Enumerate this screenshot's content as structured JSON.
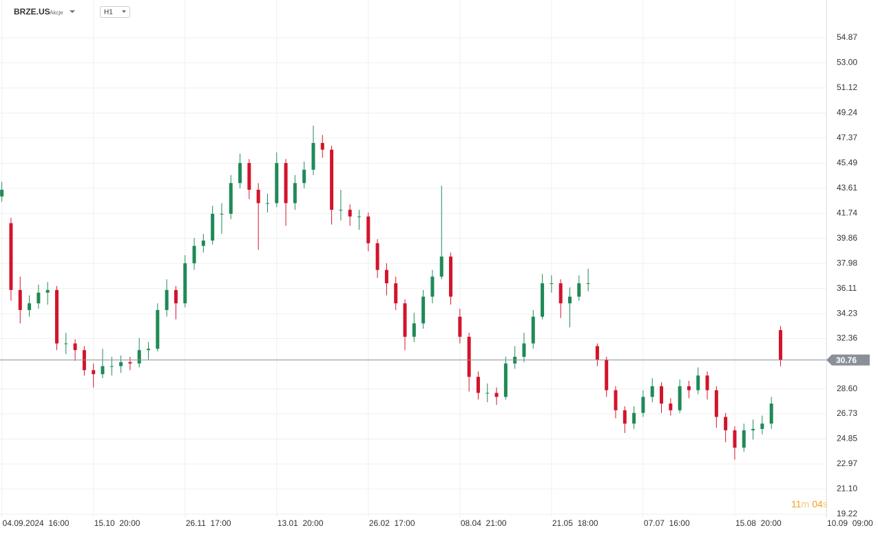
{
  "header": {
    "symbol": "BRZE.US",
    "asset_class": "Akcje",
    "interval": "H1"
  },
  "timer": {
    "minutes": "11",
    "minutes_unit": "m",
    "seconds": "04",
    "seconds_unit": "s"
  },
  "chart_data": {
    "type": "candlestick",
    "open": [
      43.0,
      41.0,
      36.0,
      34.5,
      35.0,
      35.8,
      36.0,
      32.0,
      32.0,
      31.5,
      30.0,
      29.7,
      30.3,
      30.3,
      30.6,
      30.5,
      31.5,
      31.6,
      34.5,
      36.0,
      35.0,
      38.0,
      39.3,
      39.7,
      41.7,
      41.7,
      44.0,
      45.5,
      43.5,
      42.5,
      42.5,
      45.5,
      42.5,
      44.0,
      45.0,
      47.0,
      46.5,
      42.0,
      42.0,
      41.5,
      41.5,
      39.5,
      37.5,
      36.5,
      35.0,
      32.5,
      33.5,
      35.5,
      37.0,
      38.5,
      34.0,
      32.5,
      29.5,
      28.3,
      28.3,
      28.0,
      30.5,
      31.0,
      32.0,
      34.0,
      36.5,
      36.5,
      35.0,
      35.5,
      36.5,
      31.8,
      30.8,
      28.5,
      27.0,
      26.0,
      26.8,
      28.0,
      28.8,
      27.5,
      27.0,
      28.8,
      28.5,
      29.6,
      28.5,
      26.5,
      25.5,
      24.2,
      25.5,
      25.6,
      26.0,
      33.0
    ],
    "high": [
      44.1,
      41.4,
      37.0,
      35.6,
      36.4,
      36.6,
      36.3,
      32.8,
      32.3,
      31.8,
      30.5,
      31.6,
      31.0,
      31.1,
      31.0,
      32.4,
      32.1,
      35.0,
      36.8,
      36.3,
      38.6,
      39.9,
      40.2,
      42.3,
      42.5,
      44.6,
      46.2,
      45.8,
      44.0,
      43.2,
      46.3,
      45.8,
      44.6,
      45.6,
      48.3,
      47.6,
      46.8,
      43.5,
      42.4,
      42.0,
      41.8,
      39.8,
      38.0,
      37.0,
      35.3,
      34.3,
      36.0,
      37.5,
      43.8,
      38.8,
      34.6,
      32.8,
      29.9,
      29.0,
      28.7,
      31.0,
      31.8,
      32.8,
      34.5,
      37.2,
      37.1,
      36.8,
      36.2,
      37.1,
      37.6,
      32.0,
      31.0,
      28.8,
      27.3,
      27.3,
      28.5,
      29.4,
      29.1,
      27.9,
      29.3,
      29.2,
      30.2,
      29.9,
      28.8,
      26.8,
      25.8,
      26.0,
      26.3,
      26.6,
      28.0,
      33.3
    ],
    "low": [
      42.6,
      35.2,
      33.5,
      34.0,
      34.6,
      34.9,
      31.5,
      31.2,
      30.7,
      29.6,
      28.7,
      29.4,
      29.6,
      29.8,
      30.0,
      30.2,
      30.8,
      31.4,
      34.0,
      33.8,
      34.7,
      37.5,
      38.8,
      39.4,
      40.2,
      41.3,
      43.6,
      42.8,
      39.0,
      41.8,
      42.2,
      40.8,
      42.0,
      43.6,
      44.6,
      45.9,
      40.9,
      41.2,
      40.8,
      40.5,
      38.9,
      36.9,
      35.6,
      34.5,
      31.5,
      32.1,
      33.1,
      35.0,
      36.8,
      34.9,
      32.0,
      28.4,
      27.8,
      27.6,
      27.4,
      27.8,
      30.1,
      30.6,
      31.6,
      33.8,
      35.8,
      33.9,
      33.2,
      35.2,
      35.9,
      30.3,
      28.0,
      26.4,
      25.3,
      25.6,
      26.5,
      27.6,
      26.8,
      26.6,
      26.8,
      27.9,
      28.2,
      27.8,
      25.7,
      24.6,
      23.3,
      23.9,
      24.8,
      25.2,
      25.6,
      30.3
    ],
    "close": [
      43.5,
      36.0,
      34.5,
      35.0,
      35.8,
      36.0,
      32.0,
      32.0,
      31.5,
      30.0,
      29.7,
      30.3,
      30.3,
      30.6,
      30.5,
      31.5,
      31.6,
      34.5,
      36.0,
      35.0,
      38.0,
      39.3,
      39.7,
      41.7,
      41.7,
      44.0,
      45.5,
      43.5,
      42.5,
      42.5,
      45.5,
      42.5,
      44.0,
      45.0,
      47.0,
      46.5,
      42.0,
      42.0,
      41.5,
      41.5,
      39.5,
      37.5,
      36.5,
      35.0,
      32.5,
      33.5,
      35.5,
      37.0,
      38.5,
      35.5,
      32.5,
      29.5,
      28.3,
      28.3,
      28.0,
      30.5,
      31.0,
      32.0,
      34.0,
      36.5,
      36.5,
      35.0,
      35.5,
      36.5,
      36.5,
      30.8,
      28.5,
      27.0,
      26.0,
      26.8,
      28.0,
      28.8,
      27.5,
      27.0,
      28.8,
      28.5,
      29.6,
      28.5,
      26.5,
      25.5,
      24.2,
      25.5,
      25.6,
      26.0,
      27.5,
      30.76
    ],
    "up_color": "#1f8a56",
    "down_color": "#d3142b",
    "last_price": 30.76,
    "ylim": [
      18.96,
      57.7
    ],
    "yticks": [
      {
        "value": 19.22,
        "label": "19.22"
      },
      {
        "value": 21.1,
        "label": "21.10"
      },
      22.97,
      24.85,
      26.73,
      {
        "value": 28.6,
        "label": "28.60"
      },
      32.36,
      34.23,
      36.11,
      37.98,
      39.86,
      41.74,
      43.61,
      45.49,
      47.37,
      49.24,
      51.12,
      {
        "value": 53,
        "label": "53.00"
      },
      54.87
    ],
    "xlim": [
      -0.2,
      90
    ],
    "xticks": [
      {
        "value": 0,
        "label": "04.09.2024  16:00"
      },
      {
        "value": 10,
        "label": "15.10  20:00"
      },
      {
        "value": 20,
        "label": "26.11  17:00"
      },
      {
        "value": 30,
        "label": "13.01  20:00"
      },
      {
        "value": 40,
        "label": "26.02  17:00"
      },
      {
        "value": 50,
        "label": "08.04  21:00"
      },
      {
        "value": 60,
        "label": "21.05  18:00"
      },
      {
        "value": 70,
        "label": "07.07  16:00"
      },
      {
        "value": 80,
        "label": "15.08  20:00"
      },
      {
        "value": 90,
        "label": "10.09  09:00"
      }
    ],
    "grid": true
  }
}
